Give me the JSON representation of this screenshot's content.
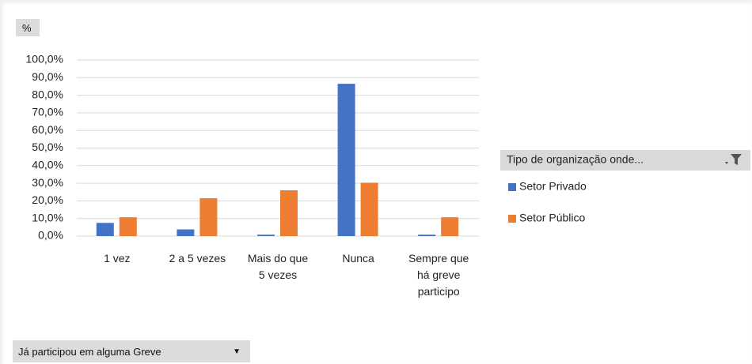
{
  "chart_data": {
    "type": "bar",
    "y_field_button": "%",
    "x_field_button": "Já participou em alguma Greve",
    "legend_title": "Tipo de organização onde...",
    "categories": [
      "1 vez",
      "2 a 5 vezes",
      "Mais do que 5 vezes",
      "Nunca",
      "Sempre que há greve participo"
    ],
    "series": [
      {
        "name": "Setor Privado",
        "color": "#4472c4",
        "values": [
          7.5,
          3.8,
          0.8,
          86.5,
          0.8
        ]
      },
      {
        "name": "Setor Público",
        "color": "#ed7d31",
        "values": [
          10.7,
          21.5,
          26,
          30.3,
          10.7
        ]
      }
    ],
    "ylim": [
      0,
      100
    ],
    "yticks": [
      {
        "value": 0,
        "label": "0,0%"
      },
      {
        "value": 10,
        "label": "10,0%"
      },
      {
        "value": 20,
        "label": "20,0%"
      },
      {
        "value": 30,
        "label": "30,0%"
      },
      {
        "value": 40,
        "label": "40,0%"
      },
      {
        "value": 50,
        "label": "50,0%"
      },
      {
        "value": 60,
        "label": "60,0%"
      },
      {
        "value": 70,
        "label": "70,0%"
      },
      {
        "value": 80,
        "label": "80,0%"
      },
      {
        "value": 90,
        "label": "90,0%"
      },
      {
        "value": 100,
        "label": "100,0%"
      }
    ],
    "grid": true,
    "legend": "right"
  }
}
